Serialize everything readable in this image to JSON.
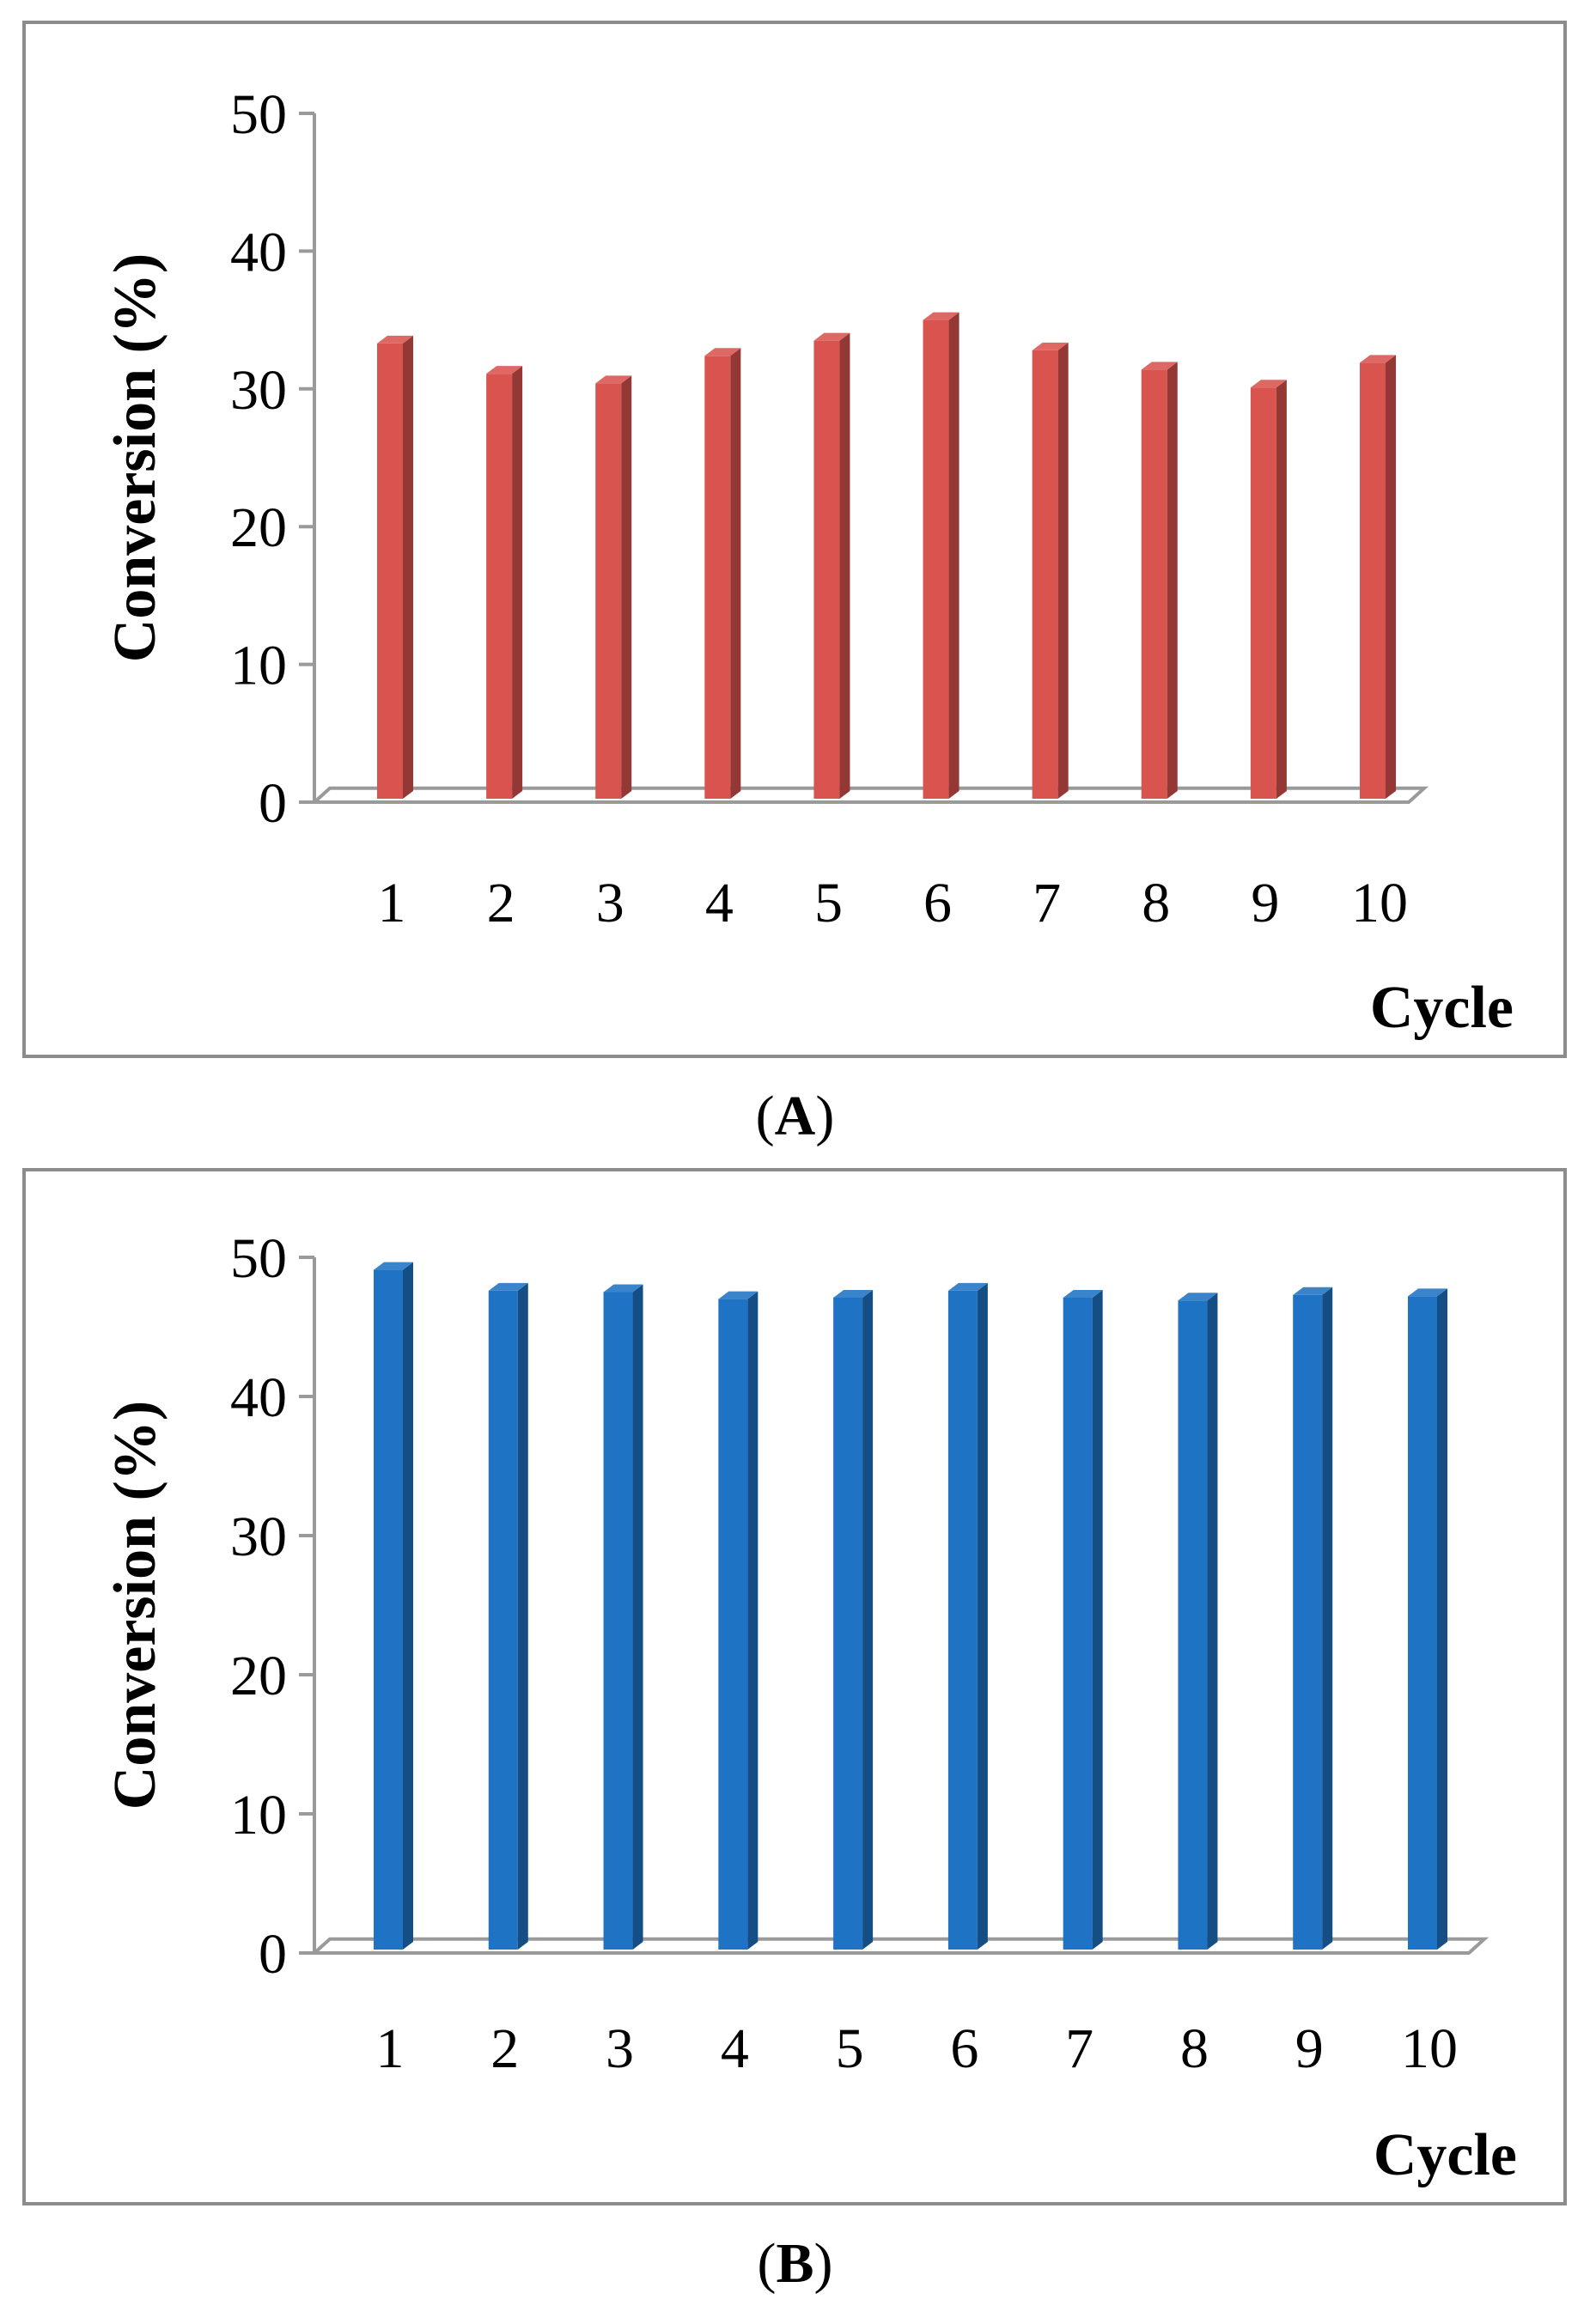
{
  "panels": [
    {
      "label": "A"
    },
    {
      "label": "B"
    }
  ],
  "chart_data": [
    {
      "type": "bar",
      "panel": "A",
      "title": "",
      "xlabel": "Cycle",
      "ylabel": "Conversion (%)",
      "ylim": [
        0,
        50
      ],
      "yticks": [
        0,
        10,
        20,
        30,
        40,
        50
      ],
      "categories": [
        "1",
        "2",
        "3",
        "4",
        "5",
        "6",
        "7",
        "8",
        "9",
        "10"
      ],
      "values": [
        33.3,
        31.1,
        30.4,
        32.4,
        33.5,
        35.0,
        32.8,
        31.4,
        30.1,
        31.9
      ],
      "color": "#d9534f",
      "grid": false,
      "legend": "none"
    },
    {
      "type": "bar",
      "panel": "B",
      "title": "",
      "xlabel": "Cycle",
      "ylabel": "Conversion (%)",
      "ylim": [
        0,
        50
      ],
      "yticks": [
        0,
        10,
        20,
        30,
        40,
        50
      ],
      "categories": [
        "1",
        "2",
        "3",
        "4",
        "5",
        "6",
        "7",
        "8",
        "9",
        "10"
      ],
      "values": [
        49.1,
        47.6,
        47.5,
        47.0,
        47.1,
        47.6,
        47.1,
        46.9,
        47.3,
        47.2
      ],
      "color": "#1f73c4",
      "grid": false,
      "legend": "none"
    }
  ]
}
